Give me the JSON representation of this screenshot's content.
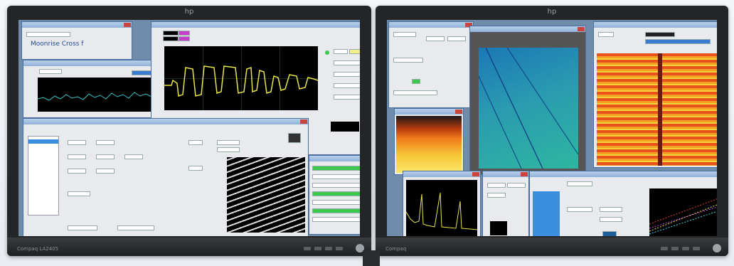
{
  "left_monitor": {
    "brand": "hp",
    "model": "Compaq LA2405"
  },
  "right_monitor": {
    "brand": "hp",
    "model": "Compaq"
  },
  "windows": {
    "logo_text": "Moonrise Cross f",
    "spectrum_title": "",
    "main_title": ""
  },
  "icons": [
    "hp-logo-icon",
    "close-icon",
    "power-icon"
  ],
  "colors": {
    "plot_yellow": "#e8e44a",
    "plot_cyan": "#39c2c7",
    "desktop": "#6f8cab",
    "title": "#8fb1d8"
  }
}
